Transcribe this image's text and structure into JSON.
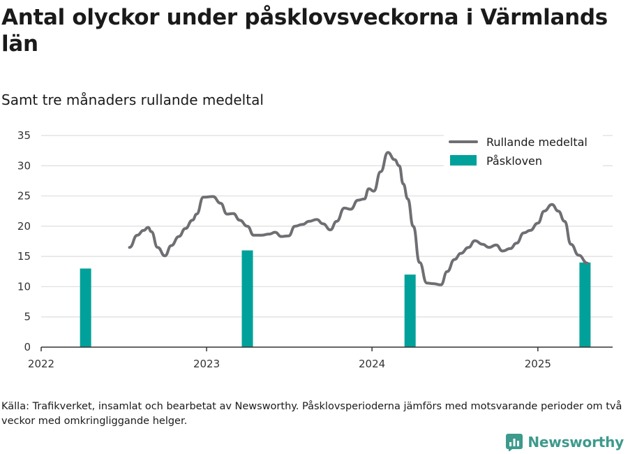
{
  "title": "Antal olyckor under påsklovsveckorna i Värmlands län",
  "subtitle": "Samt tre månaders rullande medeltal",
  "source": "Källa: Trafikverket, insamlat och bearbetat av Newsworthy. Påsklovsperioderna jämförs med motsvarande perioder om två veckor med omkringliggande helger.",
  "brand": {
    "name": "Newsworthy",
    "color": "#3d9a8c",
    "icon": "newsworthy-logo-icon"
  },
  "colors": {
    "line": "#6e6e73",
    "bar": "#00a19a",
    "grid": "#dddddd",
    "axis": "#333333"
  },
  "chart_data": {
    "type": "bar+line",
    "x_type": "date",
    "xlim": [
      "2022-01-01",
      "2025-06-15"
    ],
    "ylim": [
      0,
      35
    ],
    "y_ticks": [
      0,
      5,
      10,
      15,
      20,
      25,
      30,
      35
    ],
    "x_ticks": [
      {
        "date": "2022-01-01",
        "label": "2022"
      },
      {
        "date": "2023-01-01",
        "label": "2023"
      },
      {
        "date": "2024-01-01",
        "label": "2024"
      },
      {
        "date": "2025-01-01",
        "label": "2025"
      }
    ],
    "grid": true,
    "legend_position": "top-right",
    "series": [
      {
        "name": "Rullande medeltal",
        "type": "line",
        "points": [
          [
            "2022-07-15",
            16.5
          ],
          [
            "2022-08-01",
            18.5
          ],
          [
            "2022-08-15",
            19.3
          ],
          [
            "2022-08-25",
            19.8
          ],
          [
            "2022-09-01",
            19.1
          ],
          [
            "2022-09-15",
            16.5
          ],
          [
            "2022-10-01",
            15.1
          ],
          [
            "2022-10-15",
            16.8
          ],
          [
            "2022-11-01",
            18.3
          ],
          [
            "2022-11-15",
            19.6
          ],
          [
            "2022-12-01",
            21.0
          ],
          [
            "2022-12-10",
            22.0
          ],
          [
            "2022-12-25",
            24.8
          ],
          [
            "2023-01-15",
            24.9
          ],
          [
            "2023-02-01",
            23.8
          ],
          [
            "2023-02-15",
            22.0
          ],
          [
            "2023-03-01",
            22.1
          ],
          [
            "2023-03-15",
            21.0
          ],
          [
            "2023-04-01",
            20.0
          ],
          [
            "2023-04-15",
            18.5
          ],
          [
            "2023-05-01",
            18.5
          ],
          [
            "2023-05-20",
            18.7
          ],
          [
            "2023-06-01",
            19.0
          ],
          [
            "2023-06-15",
            18.3
          ],
          [
            "2023-07-01",
            18.4
          ],
          [
            "2023-07-15",
            20.0
          ],
          [
            "2023-08-01",
            20.3
          ],
          [
            "2023-08-15",
            20.8
          ],
          [
            "2023-09-01",
            21.1
          ],
          [
            "2023-09-15",
            20.4
          ],
          [
            "2023-10-01",
            19.4
          ],
          [
            "2023-10-15",
            20.8
          ],
          [
            "2023-11-01",
            23.0
          ],
          [
            "2023-11-15",
            22.8
          ],
          [
            "2023-12-01",
            24.3
          ],
          [
            "2023-12-15",
            24.5
          ],
          [
            "2023-12-25",
            26.2
          ],
          [
            "2024-01-05",
            25.8
          ],
          [
            "2024-01-20",
            29.0
          ],
          [
            "2024-02-05",
            32.2
          ],
          [
            "2024-02-20",
            31.0
          ],
          [
            "2024-03-01",
            30.0
          ],
          [
            "2024-03-10",
            27.0
          ],
          [
            "2024-03-20",
            24.5
          ],
          [
            "2024-04-01",
            20.0
          ],
          [
            "2024-04-15",
            14.0
          ],
          [
            "2024-05-01",
            10.6
          ],
          [
            "2024-05-15",
            10.5
          ],
          [
            "2024-06-01",
            10.3
          ],
          [
            "2024-06-15",
            12.5
          ],
          [
            "2024-07-01",
            14.5
          ],
          [
            "2024-07-15",
            15.5
          ],
          [
            "2024-08-01",
            16.5
          ],
          [
            "2024-08-15",
            17.6
          ],
          [
            "2024-09-01",
            17.0
          ],
          [
            "2024-09-15",
            16.5
          ],
          [
            "2024-10-01",
            16.9
          ],
          [
            "2024-10-15",
            15.9
          ],
          [
            "2024-11-01",
            16.3
          ],
          [
            "2024-11-15",
            17.2
          ],
          [
            "2024-12-01",
            18.9
          ],
          [
            "2024-12-15",
            19.3
          ],
          [
            "2025-01-01",
            20.5
          ],
          [
            "2025-01-15",
            22.5
          ],
          [
            "2025-02-01",
            23.6
          ],
          [
            "2025-02-15",
            22.5
          ],
          [
            "2025-03-01",
            20.8
          ],
          [
            "2025-03-15",
            17.0
          ],
          [
            "2025-04-01",
            15.2
          ],
          [
            "2025-04-20",
            13.9
          ]
        ]
      },
      {
        "name": "Påskloven",
        "type": "bar",
        "points": [
          [
            "2022-04-09",
            13
          ],
          [
            "2023-04-01",
            16
          ],
          [
            "2024-03-25",
            12
          ],
          [
            "2025-04-15",
            14
          ]
        ]
      }
    ]
  }
}
